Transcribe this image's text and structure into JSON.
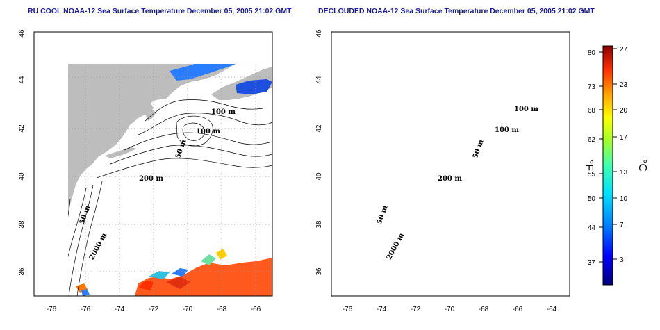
{
  "left_panel": {
    "title": "RU COOL NOAA-12 Sea Surface Temperature December 05, 2005 21:02 GMT",
    "contour_labels": [
      "100 m",
      "100 m",
      "50 m",
      "200 m",
      "50 m",
      "2000 m"
    ]
  },
  "right_panel": {
    "title": "DECLOUDED NOAA-12 Sea Surface Temperature December 05, 2005 21:02 GMT",
    "contour_labels": [
      "100 m",
      "100 m",
      "50 m",
      "200 m",
      "50 m",
      "2000 m"
    ]
  },
  "axes": {
    "longitude_ticks": [
      "-76",
      "-74",
      "-72",
      "-70",
      "-68",
      "-66",
      "-64"
    ],
    "latitude_ticks": [
      "46",
      "44",
      "42",
      "40",
      "38",
      "36"
    ]
  },
  "colorbar": {
    "fahrenheit_ticks": [
      "80",
      "73",
      "68",
      "62",
      "55",
      "50",
      "44",
      "37"
    ],
    "celsius_ticks": [
      "27",
      "23",
      "20",
      "17",
      "13",
      "10",
      "7",
      "3"
    ],
    "fahrenheit_unit": "°F",
    "celsius_unit": "°C",
    "colors": [
      "#00007a",
      "#0000ff",
      "#0066ff",
      "#00ccff",
      "#33ffcc",
      "#99ff33",
      "#ffff00",
      "#ffaa00",
      "#ff5500",
      "#e00000",
      "#8b0000"
    ]
  },
  "colors": {
    "land": "#bdbdbd",
    "warm_sst": "#ff5a1e",
    "cold_sst": "#1e64ff",
    "title": "#1a1a9c"
  }
}
